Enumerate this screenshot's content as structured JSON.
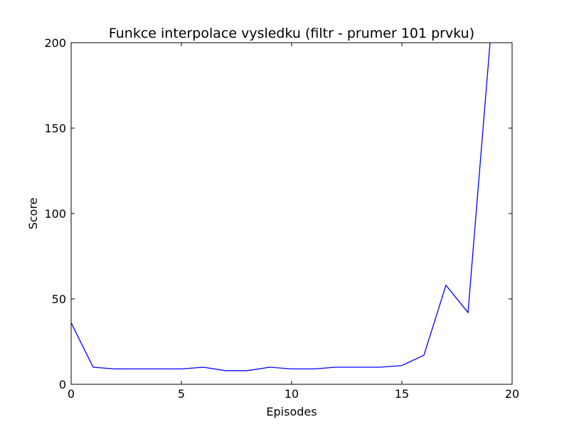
{
  "chart_data": {
    "type": "line",
    "title": "Funkce interpolace vysledku  (filtr - prumer 101 prvku)",
    "xlabel": "Episodes",
    "ylabel": "Score",
    "xlim": [
      0,
      20
    ],
    "ylim": [
      0,
      200
    ],
    "xticks": [
      0,
      5,
      10,
      15,
      20
    ],
    "yticks": [
      0,
      50,
      100,
      150,
      200
    ],
    "xtick_labels": [
      "0",
      "5",
      "10",
      "15",
      "20"
    ],
    "ytick_labels": [
      "0",
      "50",
      "100",
      "150",
      "200"
    ],
    "grid": false,
    "legend": "none",
    "line_color": "#0000ff",
    "series": [
      {
        "x": [
          0,
          1,
          2,
          3,
          4,
          5,
          6,
          7,
          8,
          9,
          10,
          11,
          12,
          13,
          14,
          15,
          16,
          17,
          18,
          19
        ],
        "y": [
          36,
          10,
          9,
          9,
          9,
          9,
          10,
          8,
          8,
          10,
          9,
          9,
          10,
          10,
          10,
          11,
          17,
          58,
          42,
          200
        ]
      }
    ]
  }
}
